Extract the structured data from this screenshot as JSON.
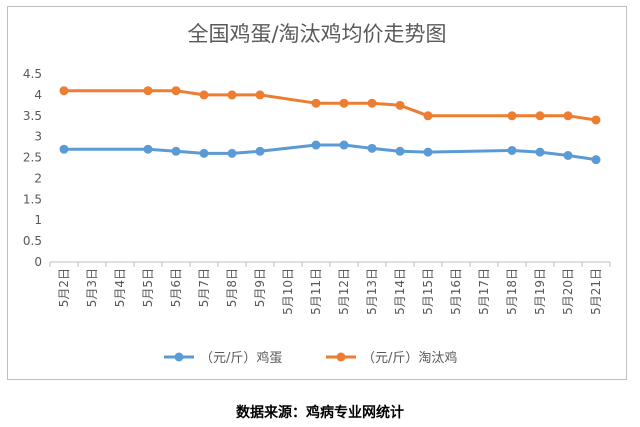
{
  "chart_data": {
    "type": "line",
    "title": "全国鸡蛋/淘汰鸡均价走势图",
    "xlabel": "",
    "ylabel": "",
    "categories": [
      "5月2日",
      "5月3日",
      "5月4日",
      "5月5日",
      "5月6日",
      "5月7日",
      "5月8日",
      "5月9日",
      "5月10日",
      "5月11日",
      "5月12日",
      "5月13日",
      "5月14日",
      "5月15日",
      "5月16日",
      "5月17日",
      "5月18日",
      "5月19日",
      "5月20日",
      "5月21日"
    ],
    "yticks": [
      "0",
      "0.5",
      "1",
      "1.5",
      "2",
      "2.5",
      "3",
      "3.5",
      "4",
      "4.5"
    ],
    "ylim": [
      0,
      4.5
    ],
    "grid": false,
    "legend_position": "bottom",
    "series": [
      {
        "name": "（元/斤）鸡蛋",
        "color": "#5b9bd5",
        "values": [
          2.7,
          null,
          null,
          2.7,
          2.65,
          2.6,
          2.6,
          2.65,
          null,
          2.8,
          2.8,
          2.72,
          2.65,
          2.63,
          null,
          null,
          2.67,
          2.63,
          2.55,
          2.45
        ]
      },
      {
        "name": "（元/斤）淘汰鸡",
        "color": "#ed7d31",
        "values": [
          4.1,
          null,
          null,
          4.1,
          4.1,
          4.0,
          4.0,
          4.0,
          null,
          3.8,
          3.8,
          3.8,
          3.75,
          3.5,
          null,
          null,
          3.5,
          3.5,
          3.5,
          3.4
        ]
      }
    ]
  },
  "footer": {
    "source": "数据来源：鸡病专业网统计"
  }
}
